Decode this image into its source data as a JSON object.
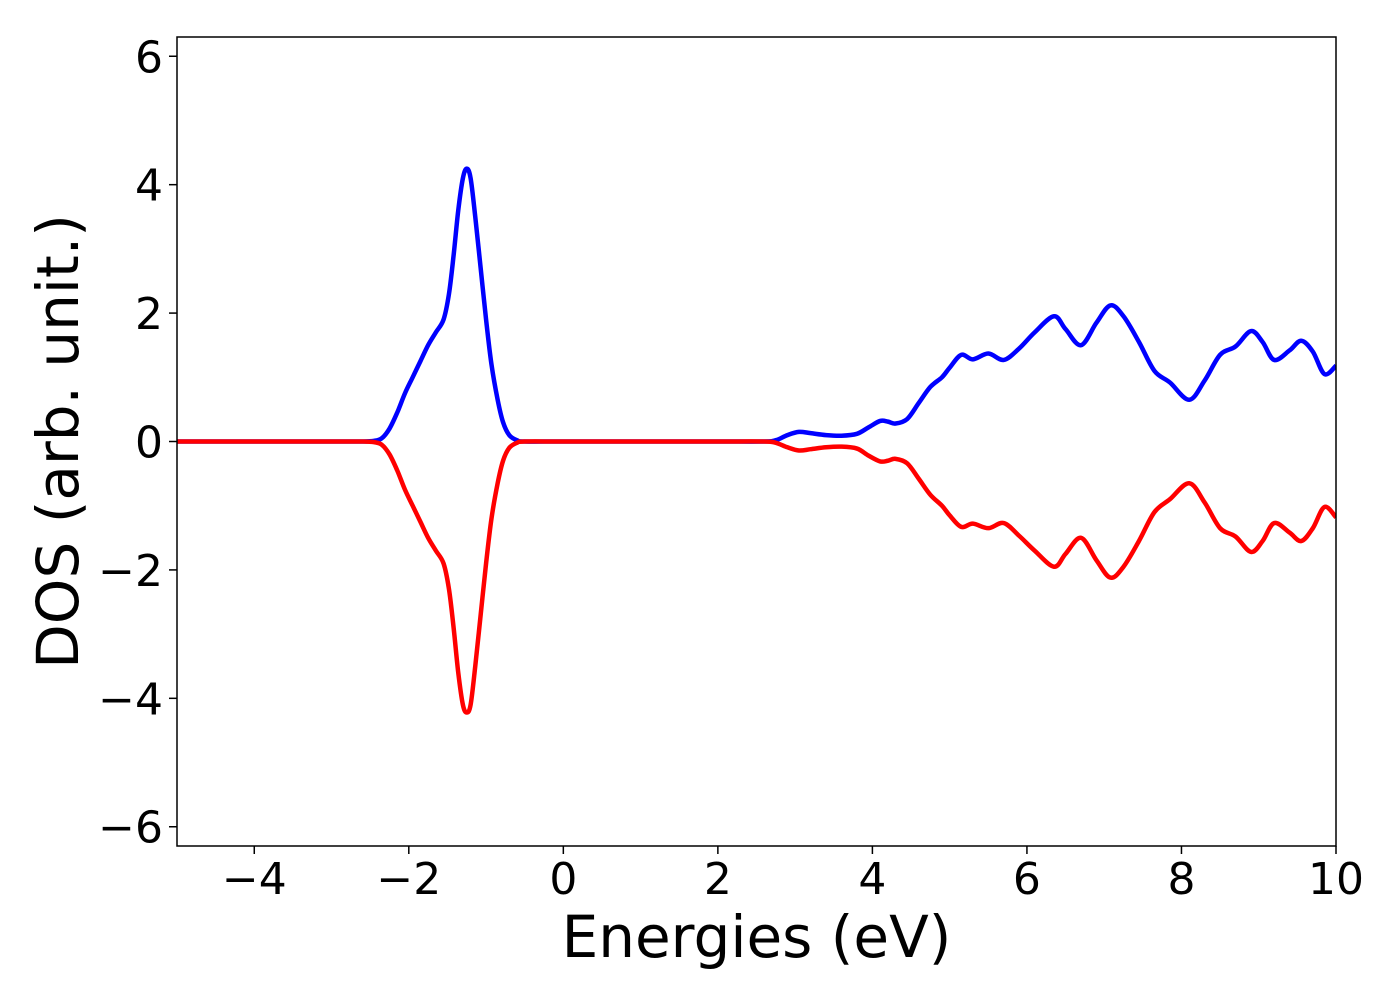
{
  "chart_data": {
    "type": "line",
    "title": "",
    "xlabel": "Energies (eV)",
    "ylabel": "DOS (arb. unit.)",
    "xlim": [
      -5,
      10
    ],
    "ylim": [
      -6.3,
      6.3
    ],
    "xticks": [
      -4,
      -2,
      0,
      2,
      4,
      6,
      8,
      10
    ],
    "yticks": [
      -6,
      -4,
      -2,
      0,
      2,
      4,
      6
    ],
    "xtick_labels": [
      "−4",
      "−2",
      "0",
      "2",
      "4",
      "6",
      "8",
      "10"
    ],
    "ytick_labels": [
      "−6",
      "−4",
      "−2",
      "0",
      "2",
      "4",
      "6"
    ],
    "grid": false,
    "legend": "none",
    "series": [
      {
        "color": "#0000ff",
        "points": [
          [
            -5.0,
            0.0
          ],
          [
            -4.0,
            0.0
          ],
          [
            -3.0,
            0.0
          ],
          [
            -2.6,
            0.0
          ],
          [
            -2.45,
            0.01
          ],
          [
            -2.35,
            0.05
          ],
          [
            -2.25,
            0.2
          ],
          [
            -2.15,
            0.45
          ],
          [
            -2.05,
            0.75
          ],
          [
            -1.95,
            1.0
          ],
          [
            -1.85,
            1.25
          ],
          [
            -1.75,
            1.5
          ],
          [
            -1.65,
            1.7
          ],
          [
            -1.55,
            1.9
          ],
          [
            -1.48,
            2.3
          ],
          [
            -1.42,
            2.9
          ],
          [
            -1.36,
            3.6
          ],
          [
            -1.3,
            4.1
          ],
          [
            -1.25,
            4.25
          ],
          [
            -1.2,
            4.1
          ],
          [
            -1.14,
            3.5
          ],
          [
            -1.07,
            2.7
          ],
          [
            -1.0,
            1.9
          ],
          [
            -0.93,
            1.2
          ],
          [
            -0.85,
            0.65
          ],
          [
            -0.78,
            0.3
          ],
          [
            -0.7,
            0.1
          ],
          [
            -0.6,
            0.02
          ],
          [
            -0.5,
            0.0
          ],
          [
            0.0,
            0.0
          ],
          [
            1.0,
            0.0
          ],
          [
            2.0,
            0.0
          ],
          [
            2.6,
            0.0
          ],
          [
            2.75,
            0.02
          ],
          [
            2.9,
            0.1
          ],
          [
            3.05,
            0.15
          ],
          [
            3.2,
            0.13
          ],
          [
            3.4,
            0.1
          ],
          [
            3.6,
            0.09
          ],
          [
            3.8,
            0.12
          ],
          [
            3.95,
            0.22
          ],
          [
            4.1,
            0.32
          ],
          [
            4.2,
            0.31
          ],
          [
            4.3,
            0.28
          ],
          [
            4.45,
            0.35
          ],
          [
            4.6,
            0.6
          ],
          [
            4.75,
            0.85
          ],
          [
            4.9,
            1.0
          ],
          [
            5.0,
            1.15
          ],
          [
            5.15,
            1.35
          ],
          [
            5.3,
            1.28
          ],
          [
            5.5,
            1.37
          ],
          [
            5.7,
            1.27
          ],
          [
            5.9,
            1.45
          ],
          [
            6.1,
            1.7
          ],
          [
            6.35,
            1.95
          ],
          [
            6.5,
            1.75
          ],
          [
            6.7,
            1.5
          ],
          [
            6.9,
            1.85
          ],
          [
            7.08,
            2.12
          ],
          [
            7.25,
            1.95
          ],
          [
            7.45,
            1.55
          ],
          [
            7.65,
            1.1
          ],
          [
            7.85,
            0.92
          ],
          [
            8.1,
            0.65
          ],
          [
            8.3,
            0.95
          ],
          [
            8.5,
            1.35
          ],
          [
            8.7,
            1.48
          ],
          [
            8.9,
            1.72
          ],
          [
            9.05,
            1.55
          ],
          [
            9.2,
            1.27
          ],
          [
            9.4,
            1.42
          ],
          [
            9.55,
            1.57
          ],
          [
            9.7,
            1.4
          ],
          [
            9.85,
            1.05
          ],
          [
            10.0,
            1.18
          ]
        ]
      },
      {
        "color": "#ff0000",
        "points": [
          [
            -5.0,
            0.0
          ],
          [
            -4.0,
            0.0
          ],
          [
            -3.0,
            0.0
          ],
          [
            -2.6,
            0.0
          ],
          [
            -2.45,
            -0.01
          ],
          [
            -2.35,
            -0.05
          ],
          [
            -2.25,
            -0.2
          ],
          [
            -2.15,
            -0.45
          ],
          [
            -2.05,
            -0.75
          ],
          [
            -1.95,
            -1.0
          ],
          [
            -1.85,
            -1.25
          ],
          [
            -1.75,
            -1.5
          ],
          [
            -1.65,
            -1.7
          ],
          [
            -1.55,
            -1.9
          ],
          [
            -1.48,
            -2.3
          ],
          [
            -1.42,
            -2.9
          ],
          [
            -1.36,
            -3.6
          ],
          [
            -1.3,
            -4.1
          ],
          [
            -1.25,
            -4.22
          ],
          [
            -1.2,
            -4.1
          ],
          [
            -1.14,
            -3.5
          ],
          [
            -1.07,
            -2.7
          ],
          [
            -1.0,
            -1.9
          ],
          [
            -0.93,
            -1.2
          ],
          [
            -0.85,
            -0.65
          ],
          [
            -0.78,
            -0.3
          ],
          [
            -0.7,
            -0.1
          ],
          [
            -0.6,
            -0.02
          ],
          [
            -0.5,
            0.0
          ],
          [
            0.0,
            0.0
          ],
          [
            1.0,
            0.0
          ],
          [
            2.0,
            0.0
          ],
          [
            2.6,
            0.0
          ],
          [
            2.75,
            -0.02
          ],
          [
            2.9,
            -0.09
          ],
          [
            3.05,
            -0.14
          ],
          [
            3.2,
            -0.12
          ],
          [
            3.4,
            -0.09
          ],
          [
            3.6,
            -0.08
          ],
          [
            3.8,
            -0.11
          ],
          [
            3.95,
            -0.22
          ],
          [
            4.1,
            -0.31
          ],
          [
            4.2,
            -0.3
          ],
          [
            4.3,
            -0.27
          ],
          [
            4.45,
            -0.34
          ],
          [
            4.6,
            -0.58
          ],
          [
            4.75,
            -0.83
          ],
          [
            4.9,
            -1.0
          ],
          [
            5.0,
            -1.15
          ],
          [
            5.15,
            -1.33
          ],
          [
            5.3,
            -1.28
          ],
          [
            5.5,
            -1.35
          ],
          [
            5.7,
            -1.27
          ],
          [
            5.9,
            -1.47
          ],
          [
            6.1,
            -1.7
          ],
          [
            6.35,
            -1.95
          ],
          [
            6.5,
            -1.75
          ],
          [
            6.7,
            -1.5
          ],
          [
            6.9,
            -1.85
          ],
          [
            7.08,
            -2.12
          ],
          [
            7.25,
            -1.95
          ],
          [
            7.45,
            -1.55
          ],
          [
            7.65,
            -1.1
          ],
          [
            7.85,
            -0.9
          ],
          [
            8.1,
            -0.65
          ],
          [
            8.3,
            -0.95
          ],
          [
            8.5,
            -1.35
          ],
          [
            8.7,
            -1.48
          ],
          [
            8.9,
            -1.72
          ],
          [
            9.05,
            -1.55
          ],
          [
            9.2,
            -1.27
          ],
          [
            9.4,
            -1.42
          ],
          [
            9.55,
            -1.55
          ],
          [
            9.7,
            -1.35
          ],
          [
            9.85,
            -1.02
          ],
          [
            10.0,
            -1.18
          ]
        ]
      }
    ]
  }
}
